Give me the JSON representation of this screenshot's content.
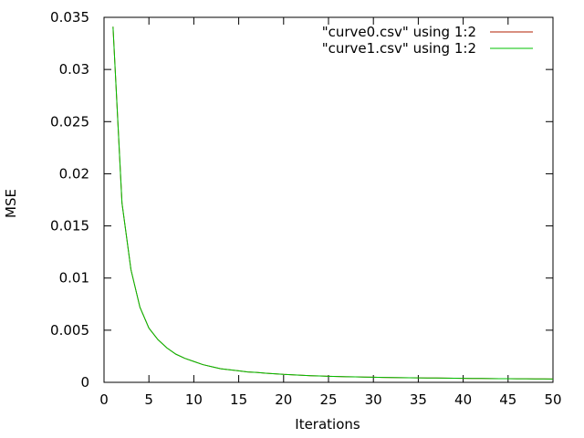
{
  "chart_data": {
    "type": "line",
    "title": "",
    "xlabel": "Iterations",
    "ylabel": "MSE",
    "xlim": [
      0,
      50
    ],
    "ylim": [
      0,
      0.035
    ],
    "x_ticks": [
      "0",
      "5",
      "10",
      "15",
      "20",
      "25",
      "30",
      "35",
      "40",
      "45",
      "50"
    ],
    "y_ticks": [
      "0",
      "0.005",
      "0.01",
      "0.015",
      "0.02",
      "0.025",
      "0.03",
      "0.035"
    ],
    "x_tick_values": [
      0,
      5,
      10,
      15,
      20,
      25,
      30,
      35,
      40,
      45,
      50
    ],
    "y_tick_values": [
      0,
      0.005,
      0.01,
      0.015,
      0.02,
      0.025,
      0.03,
      0.035
    ],
    "grid": false,
    "legend_position": "top-right",
    "x": [
      1,
      2,
      3,
      4,
      5,
      6,
      7,
      8,
      9,
      10,
      11,
      12,
      13,
      14,
      15,
      16,
      17,
      18,
      19,
      20,
      21,
      22,
      23,
      24,
      25,
      26,
      27,
      28,
      29,
      30,
      31,
      32,
      33,
      34,
      35,
      36,
      37,
      38,
      39,
      40,
      41,
      42,
      43,
      44,
      45,
      46,
      47,
      48,
      49,
      50
    ],
    "series": [
      {
        "name": "\"curve0.csv\" using 1:2",
        "color": "#b01f00",
        "values": [
          0.0341,
          0.0172,
          0.0108,
          0.0072,
          0.0052,
          0.0041,
          0.0033,
          0.0027,
          0.0023,
          0.002,
          0.0017,
          0.0015,
          0.0013,
          0.0012,
          0.0011,
          0.001,
          0.00095,
          0.00088,
          0.00082,
          0.00076,
          0.00072,
          0.00068,
          0.00064,
          0.00061,
          0.00058,
          0.00056,
          0.00054,
          0.00052,
          0.0005,
          0.00049,
          0.00047,
          0.00046,
          0.00045,
          0.00044,
          0.00043,
          0.00042,
          0.00041,
          0.0004,
          0.00039,
          0.00038,
          0.00037,
          0.00037,
          0.00036,
          0.00035,
          0.00035,
          0.00034,
          0.00034,
          0.00033,
          0.00033,
          0.00032
        ]
      },
      {
        "name": "\"curve1.csv\" using 1:2",
        "color": "#00c000",
        "values": [
          0.0341,
          0.0172,
          0.0108,
          0.0072,
          0.0052,
          0.0041,
          0.0033,
          0.0027,
          0.0023,
          0.002,
          0.0017,
          0.0015,
          0.0013,
          0.0012,
          0.0011,
          0.001,
          0.00095,
          0.00088,
          0.00082,
          0.00076,
          0.00072,
          0.00068,
          0.00064,
          0.00061,
          0.00058,
          0.00056,
          0.00054,
          0.00052,
          0.0005,
          0.00049,
          0.00047,
          0.00046,
          0.00045,
          0.00044,
          0.00043,
          0.00042,
          0.00041,
          0.0004,
          0.00039,
          0.00038,
          0.00037,
          0.00037,
          0.00036,
          0.00035,
          0.00035,
          0.00034,
          0.00034,
          0.00033,
          0.00033,
          0.00032
        ]
      }
    ]
  }
}
